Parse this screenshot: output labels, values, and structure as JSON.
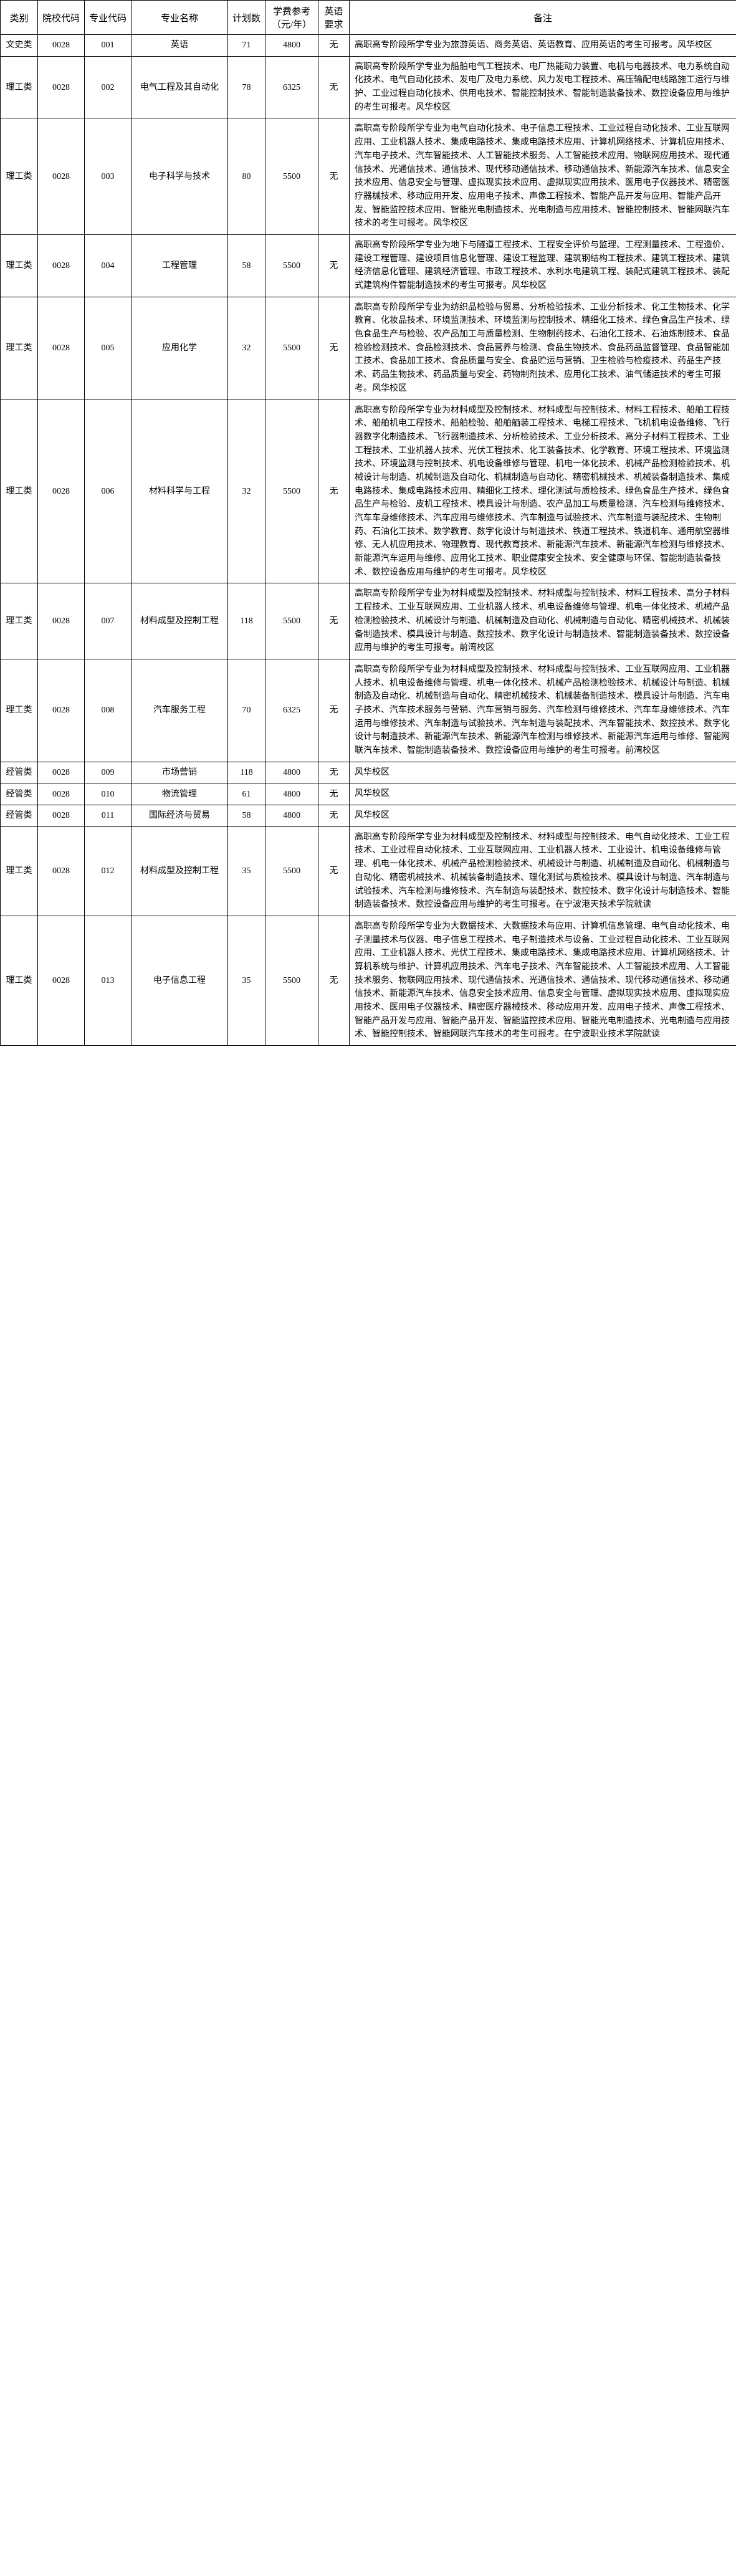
{
  "table": {
    "headers": {
      "category": "类别",
      "school_code": "院校代码",
      "major_code": "专业代码",
      "major_name": "专业名称",
      "plan": "计划数",
      "tuition": "学费参考（元/年）",
      "english": "英语要求",
      "remark": "备注"
    },
    "rows": [
      {
        "category": "文史类",
        "school_code": "0028",
        "major_code": "001",
        "major_name": "英语",
        "plan": "71",
        "tuition": "4800",
        "english": "无",
        "remark": "高职高专阶段所学专业为旅游英语、商务英语、英语教育、应用英语的考生可报考。风华校区"
      },
      {
        "category": "理工类",
        "school_code": "0028",
        "major_code": "002",
        "major_name": "电气工程及其自动化",
        "plan": "78",
        "tuition": "6325",
        "english": "无",
        "remark": "高职高专阶段所学专业为船舶电气工程技术、电厂热能动力装置、电机与电器技术、电力系统自动化技术、电气自动化技术、发电厂及电力系统、风力发电工程技术、高压输配电线路施工运行与维护、工业过程自动化技术、供用电技术、智能控制技术、智能制造装备技术、数控设备应用与维护的考生可报考。风华校区"
      },
      {
        "category": "理工类",
        "school_code": "0028",
        "major_code": "003",
        "major_name": "电子科学与技术",
        "plan": "80",
        "tuition": "5500",
        "english": "无",
        "remark": "高职高专阶段所学专业为电气自动化技术、电子信息工程技术、工业过程自动化技术、工业互联网应用、工业机器人技术、集成电路技术、集成电路技术应用、计算机网络技术、计算机应用技术、汽车电子技术、汽车智能技术、人工智能技术服务、人工智能技术应用、物联网应用技术、现代通信技术、光通信技术、通信技术、现代移动通信技术、移动通信技术、新能源汽车技术、信息安全技术应用、信息安全与管理、虚拟现实技术应用、虚拟现实应用技术、医用电子仪器技术、精密医疗器械技术、移动应用开发、应用电子技术、声像工程技术、智能产品开发与应用、智能产品开发、智能监控技术应用、智能光电制造技术、光电制造与应用技术、智能控制技术、智能网联汽车技术的考生可报考。风华校区"
      },
      {
        "category": "理工类",
        "school_code": "0028",
        "major_code": "004",
        "major_name": "工程管理",
        "plan": "58",
        "tuition": "5500",
        "english": "无",
        "remark": "高职高专阶段所学专业为地下与隧道工程技术、工程安全评价与监理、工程测量技术、工程造价、建设工程管理、建设项目信息化管理、建设工程监理、建筑钢结构工程技术、建筑工程技术、建筑经济信息化管理、建筑经济管理、市政工程技术、水利水电建筑工程、装配式建筑工程技术、装配式建筑构件智能制造技术的考生可报考。风华校区"
      },
      {
        "category": "理工类",
        "school_code": "0028",
        "major_code": "005",
        "major_name": "应用化学",
        "plan": "32",
        "tuition": "5500",
        "english": "无",
        "remark": "高职高专阶段所学专业为纺织品检验与贸易、分析检验技术、工业分析技术、化工生物技术、化学教育、化妆品技术、环境监测技术、环境监测与控制技术、精细化工技术、绿色食品生产技术、绿色食品生产与检验、农产品加工与质量检测、生物制药技术、石油化工技术、石油炼制技术、食品检验检测技术、食品检测技术、食品营养与检测、食品生物技术、食品药品监督管理、食品智能加工技术、食品加工技术、食品质量与安全、食品贮运与营销、卫生检验与检疫技术、药品生产技术、药品生物技术、药品质量与安全、药物制剂技术、应用化工技术、油气储运技术的考生可报考。风华校区"
      },
      {
        "category": "理工类",
        "school_code": "0028",
        "major_code": "006",
        "major_name": "材料科学与工程",
        "plan": "32",
        "tuition": "5500",
        "english": "无",
        "remark": "高职高专阶段所学专业为材料成型及控制技术、材料成型与控制技术、材料工程技术、船舶工程技术、船舶机电工程技术、船舶检验、船舶舾装工程技术、电梯工程技术、飞机机电设备维修、飞行器数字化制造技术、飞行器制造技术、分析检验技术、工业分析技术、高分子材料工程技术、工业工程技术、工业机器人技术、光伏工程技术、化工装备技术、化学教育、环境工程技术、环境监测技术、环境监测与控制技术、机电设备维修与管理、机电一体化技术、机械产品检测检验技术、机械设计与制造、机械制造及自动化、机械制造与自动化、精密机械技术、机械装备制造技术、集成电路技术、集成电路技术应用、精细化工技术、理化测试与质检技术、绿色食品生产技术、绿色食品生产与检验、皮机工程技术、模具设计与制造、农产品加工与质量检测、汽车检测与维修技术、汽车车身维修技术、汽车应用与维修技术、汽车制造与试验技术、汽车制造与装配技术、生物制药、石油化工技术、数学教育、数字化设计与制造技术、铁道工程技术、铁道机车、通用航空器维修、无人机应用技术、物理教育、现代教育技术、新能源汽车技术、新能源汽车检测与维修技术、新能源汽车运用与维修、应用化工技术、职业健康安全技术、安全健康与环保、智能制造装备技术、数控设备应用与维护的考生可报考。风华校区"
      },
      {
        "category": "理工类",
        "school_code": "0028",
        "major_code": "007",
        "major_name": "材料成型及控制工程",
        "plan": "118",
        "tuition": "5500",
        "english": "无",
        "remark": "高职高专阶段所学专业为材料成型及控制技术、材料成型与控制技术、材料工程技术、高分子材料工程技术、工业互联网应用、工业机器人技术、机电设备维修与管理、机电一体化技术、机械产品检测检验技术、机械设计与制造、机械制造及自动化、机械制造与自动化、精密机械技术、机械装备制造技术、模具设计与制造、数控技术、数字化设计与制造技术、智能制造装备技术、数控设备应用与维护的考生可报考。前湾校区"
      },
      {
        "category": "理工类",
        "school_code": "0028",
        "major_code": "008",
        "major_name": "汽车服务工程",
        "plan": "70",
        "tuition": "6325",
        "english": "无",
        "remark": "高职高专阶段所学专业为材料成型及控制技术、材料成型与控制技术、工业互联网应用、工业机器人技术、机电设备维修与管理、机电一体化技术、机械产品检测检验技术、机械设计与制造、机械制造及自动化、机械制造与自动化、精密机械技术、机械装备制造技术、模具设计与制造、汽车电子技术、汽车技术服务与营销、汽车营销与服务、汽车检测与维修技术、汽车车身维修技术、汽车运用与维修技术、汽车制造与试验技术、汽车制造与装配技术、汽车智能技术、数控技术、数字化设计与制造技术、新能源汽车技术、新能源汽车检测与维修技术、新能源汽车运用与维修、智能网联汽车技术、智能制造装备技术、数控设备应用与维护的考生可报考。前湾校区"
      },
      {
        "category": "经管类",
        "school_code": "0028",
        "major_code": "009",
        "major_name": "市场营销",
        "plan": "118",
        "tuition": "4800",
        "english": "无",
        "remark": "风华校区"
      },
      {
        "category": "经管类",
        "school_code": "0028",
        "major_code": "010",
        "major_name": "物流管理",
        "plan": "61",
        "tuition": "4800",
        "english": "无",
        "remark": "风华校区"
      },
      {
        "category": "经管类",
        "school_code": "0028",
        "major_code": "011",
        "major_name": "国际经济与贸易",
        "plan": "58",
        "tuition": "4800",
        "english": "无",
        "remark": "风华校区"
      },
      {
        "category": "理工类",
        "school_code": "0028",
        "major_code": "012",
        "major_name": "材料成型及控制工程",
        "plan": "35",
        "tuition": "5500",
        "english": "无",
        "remark": "高职高专阶段所学专业为材料成型及控制技术、材料成型与控制技术、电气自动化技术、工业工程技术、工业过程自动化技术、工业互联网应用、工业机器人技术、工业设计、机电设备维修与管理、机电一体化技术、机械产品检测检验技术、机械设计与制造、机械制造及自动化、机械制造与自动化、精密机械技术、机械装备制造技术、理化测试与质检技术、模具设计与制造、汽车制造与试验技术、汽车检测与维修技术、汽车制造与装配技术、数控技术、数字化设计与制造技术、智能制造装备技术、数控设备应用与维护的考生可报考。在宁波港天技术学院就读"
      },
      {
        "category": "理工类",
        "school_code": "0028",
        "major_code": "013",
        "major_name": "电子信息工程",
        "plan": "35",
        "tuition": "5500",
        "english": "无",
        "remark": "高职高专阶段所学专业为大数据技术、大数据技术与应用、计算机信息管理、电气自动化技术、电子测量技术与仪器、电子信息工程技术、电子制造技术与设备、工业过程自动化技术、工业互联网应用、工业机器人技术、光伏工程技术、集成电路技术、集成电路技术应用、计算机网络技术、计算机系统与维护、计算机应用技术、汽车电子技术、汽车智能技术、人工智能技术应用、人工智能技术服务、物联网应用技术、现代通信技术、光通信技术、通信技术、现代移动通信技术、移动通信技术、新能源汽车技术、信息安全技术应用、信息安全与管理、虚拟现实技术应用、虚拟现实应用技术、医用电子仪器技术、精密医疗器械技术、移动应用开发、应用电子技术、声像工程技术、智能产品开发与应用、智能产品开发、智能监控技术应用、智能光电制造技术、光电制造与应用技术、智能控制技术、智能网联汽车技术的考生可报考。在宁波职业技术学院就读"
      }
    ]
  },
  "styling": {
    "border_color": "#000000",
    "background_color": "#ffffff",
    "text_color": "#000000",
    "header_fontsize": 15,
    "cell_fontsize": 14,
    "line_height": 1.5,
    "col_widths": {
      "category": 60,
      "school_code": 75,
      "major_code": 75,
      "major_name": 155,
      "plan": 60,
      "tuition": 85,
      "english": 50,
      "remark": 621
    }
  }
}
